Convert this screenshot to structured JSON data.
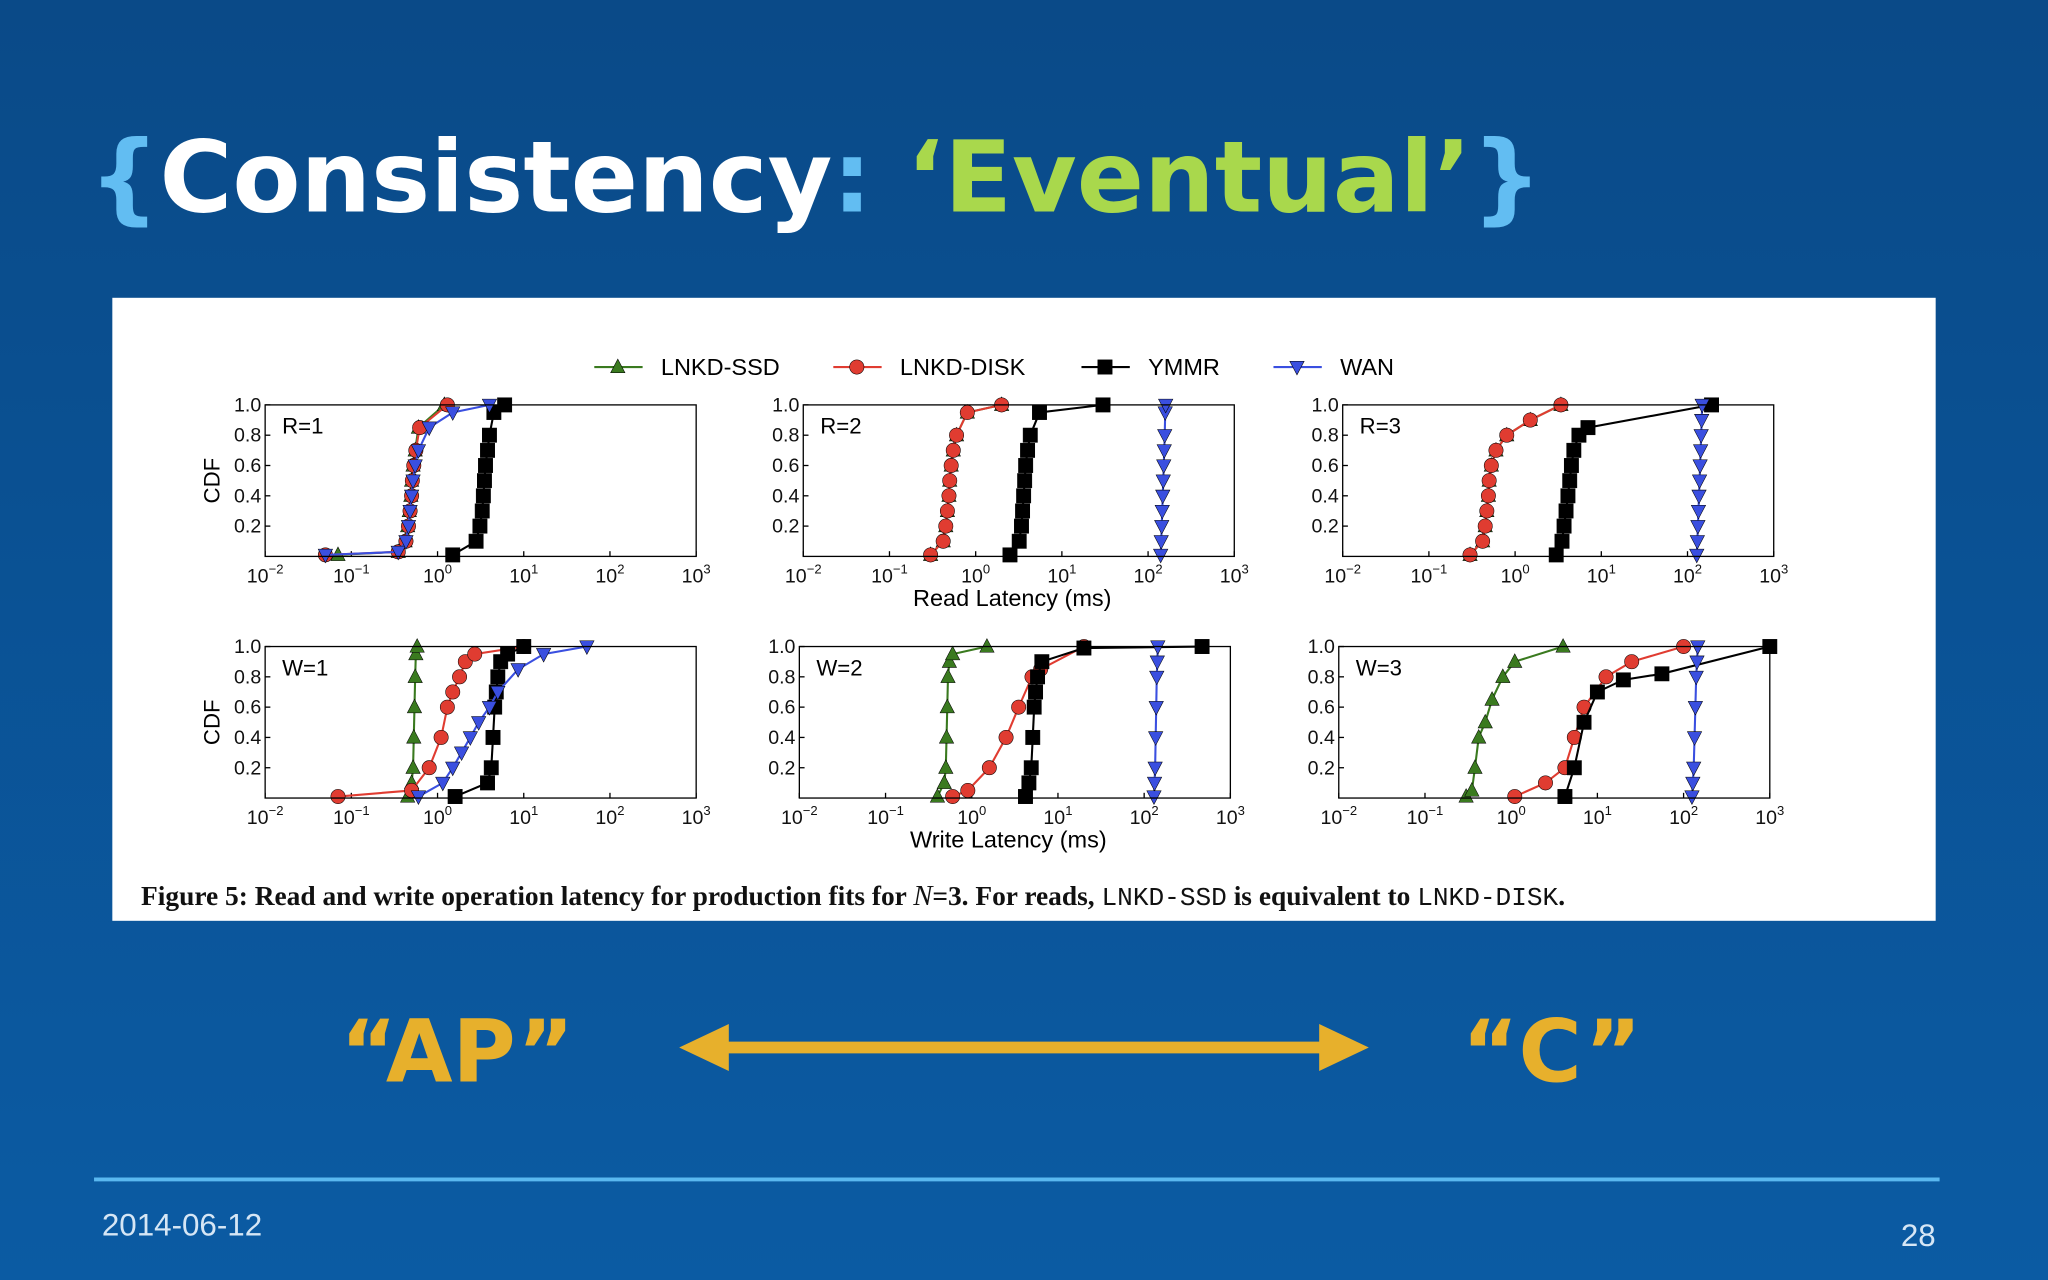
{
  "slide": {
    "title": [
      "{",
      "Consistency",
      ": ",
      "‘Eventual’",
      "}"
    ],
    "caption": [
      "Figure 5: Read and write operation latency for production fits for ",
      "N",
      "=3. For reads, ",
      "LNKD-SSD",
      " is equivalent to ",
      "LNKD-DISK",
      "."
    ],
    "left_label": "“AP”",
    "right_label": "“C”",
    "date": "2014-06-12",
    "page": "28"
  },
  "chart_data": {
    "type": "line",
    "xscale": "log",
    "legend": "top",
    "series": [
      {
        "name": "LNKD-SSD",
        "color": "#3a7a1f",
        "marker": "triangle-up"
      },
      {
        "name": "LNKD-DISK",
        "color": "#e03c31",
        "marker": "circle"
      },
      {
        "name": "YMMR",
        "color": "#000000",
        "marker": "square"
      },
      {
        "name": "WAN",
        "color": "#3a4fe0",
        "marker": "triangle-down"
      }
    ],
    "xlim": [
      0.01,
      1000
    ],
    "xticks": [
      {
        "value": 0.01,
        "label": "10",
        "exponent": "−2"
      },
      {
        "value": 0.1,
        "label": "10",
        "exponent": "−1"
      },
      {
        "value": 1,
        "label": "10",
        "exponent": "0"
      },
      {
        "value": 10,
        "label": "10",
        "exponent": "1"
      },
      {
        "value": 100,
        "label": "10",
        "exponent": "2"
      },
      {
        "value": 1000,
        "label": "10",
        "exponent": "3"
      }
    ],
    "ylim": [
      0,
      1
    ],
    "yticks": [
      0.2,
      0.4,
      0.6,
      0.8,
      {
        "value": 1,
        "label": "1.0"
      }
    ],
    "panels": [
      {
        "label": "R=1",
        "ylabel": "CDF",
        "lines": [
          {
            "x": [
              0.07,
              0.35,
              0.42,
              0.45,
              0.47,
              0.49,
              0.5,
              0.52,
              0.55,
              0.6,
              1.2
            ],
            "values": [
              0.01,
              0.03,
              0.1,
              0.2,
              0.3,
              0.4,
              0.5,
              0.6,
              0.7,
              0.85,
              1
            ]
          },
          {
            "x": [
              0.05,
              0.35,
              0.43,
              0.46,
              0.48,
              0.5,
              0.51,
              0.53,
              0.56,
              0.62,
              1.3
            ],
            "values": [
              0.01,
              0.03,
              0.1,
              0.2,
              0.3,
              0.4,
              0.5,
              0.6,
              0.7,
              0.85,
              1
            ]
          },
          {
            "x": [
              1.5,
              2.8,
              3.1,
              3.3,
              3.4,
              3.5,
              3.6,
              3.8,
              4,
              4.5,
              6
            ],
            "values": [
              0.01,
              0.1,
              0.2,
              0.3,
              0.4,
              0.5,
              0.6,
              0.7,
              0.8,
              0.95,
              1
            ]
          },
          {
            "x": [
              0.05,
              0.35,
              0.43,
              0.46,
              0.48,
              0.5,
              0.52,
              0.55,
              0.6,
              0.8,
              1.5,
              4
            ],
            "values": [
              0.01,
              0.03,
              0.1,
              0.2,
              0.3,
              0.4,
              0.5,
              0.6,
              0.7,
              0.85,
              0.95,
              1
            ]
          }
        ]
      },
      {
        "label": "R=2",
        "xlabel": "Read Latency (ms)",
        "lines": [
          {
            "x": [
              0.3,
              0.42,
              0.45,
              0.47,
              0.49,
              0.5,
              0.52,
              0.55,
              0.6,
              0.8,
              2
            ],
            "values": [
              0.01,
              0.1,
              0.2,
              0.3,
              0.4,
              0.5,
              0.6,
              0.7,
              0.8,
              0.95,
              1
            ]
          },
          {
            "x": [
              0.3,
              0.42,
              0.45,
              0.47,
              0.49,
              0.5,
              0.52,
              0.55,
              0.6,
              0.8,
              2
            ],
            "values": [
              0.01,
              0.1,
              0.2,
              0.3,
              0.4,
              0.5,
              0.6,
              0.7,
              0.8,
              0.95,
              1
            ]
          },
          {
            "x": [
              2.5,
              3.2,
              3.4,
              3.5,
              3.6,
              3.7,
              3.8,
              4,
              4.3,
              5.5,
              30
            ],
            "values": [
              0.01,
              0.1,
              0.2,
              0.3,
              0.4,
              0.5,
              0.6,
              0.7,
              0.8,
              0.95,
              1
            ]
          },
          {
            "x": [
              140,
              142,
              144,
              146,
              148,
              150,
              152,
              154,
              156,
              158,
              160
            ],
            "values": [
              0.01,
              0.1,
              0.2,
              0.3,
              0.4,
              0.5,
              0.6,
              0.7,
              0.8,
              0.95,
              1
            ]
          }
        ]
      },
      {
        "label": "R=3",
        "lines": [
          {
            "x": [
              0.3,
              0.42,
              0.45,
              0.47,
              0.49,
              0.5,
              0.53,
              0.6,
              0.8,
              1.5,
              3.4
            ],
            "values": [
              0.01,
              0.1,
              0.2,
              0.3,
              0.4,
              0.5,
              0.6,
              0.7,
              0.8,
              0.9,
              1
            ]
          },
          {
            "x": [
              0.3,
              0.42,
              0.45,
              0.47,
              0.49,
              0.5,
              0.53,
              0.6,
              0.8,
              1.5,
              3.4
            ],
            "values": [
              0.01,
              0.1,
              0.2,
              0.3,
              0.4,
              0.5,
              0.6,
              0.7,
              0.8,
              0.9,
              1
            ]
          },
          {
            "x": [
              3,
              3.5,
              3.7,
              3.9,
              4.1,
              4.3,
              4.5,
              4.8,
              5.5,
              7,
              190
            ],
            "values": [
              0.01,
              0.1,
              0.2,
              0.3,
              0.4,
              0.5,
              0.6,
              0.7,
              0.8,
              0.85,
              1
            ]
          },
          {
            "x": [
              128,
              130,
              132,
              134,
              136,
              138,
              140,
              142,
              144,
              146,
              148
            ],
            "values": [
              0.01,
              0.1,
              0.2,
              0.3,
              0.4,
              0.5,
              0.6,
              0.7,
              0.8,
              0.9,
              1
            ]
          }
        ]
      },
      {
        "label": "W=1",
        "ylabel": "CDF",
        "lines": [
          {
            "x": [
              0.45,
              0.5,
              0.52,
              0.53,
              0.54,
              0.55,
              0.56,
              0.58
            ],
            "values": [
              0.01,
              0.1,
              0.2,
              0.4,
              0.6,
              0.8,
              0.95,
              1
            ]
          },
          {
            "x": [
              0.07,
              0.5,
              0.8,
              1.1,
              1.3,
              1.5,
              1.8,
              2.1,
              2.7,
              10
            ],
            "values": [
              0.01,
              0.05,
              0.2,
              0.4,
              0.6,
              0.7,
              0.8,
              0.9,
              0.95,
              1
            ]
          },
          {
            "x": [
              1.6,
              3.8,
              4.2,
              4.4,
              4.6,
              4.8,
              5,
              5.4,
              6.5,
              10
            ],
            "values": [
              0.01,
              0.1,
              0.2,
              0.4,
              0.6,
              0.7,
              0.8,
              0.9,
              0.95,
              1
            ]
          },
          {
            "x": [
              0.6,
              1.15,
              1.5,
              1.9,
              2.4,
              3,
              4,
              5,
              8.6,
              17,
              54
            ],
            "values": [
              0.01,
              0.1,
              0.2,
              0.3,
              0.4,
              0.5,
              0.6,
              0.7,
              0.85,
              0.95,
              1
            ]
          }
        ]
      },
      {
        "label": "W=2",
        "xlabel": "Write Latency (ms)",
        "lines": [
          {
            "x": [
              0.4,
              0.48,
              0.5,
              0.51,
              0.52,
              0.53,
              0.55,
              0.6,
              1.5
            ],
            "values": [
              0.01,
              0.1,
              0.2,
              0.4,
              0.6,
              0.8,
              0.9,
              0.95,
              1
            ]
          },
          {
            "x": [
              0.6,
              0.9,
              1.6,
              2.5,
              3.5,
              5,
              6.3,
              20
            ],
            "values": [
              0.01,
              0.05,
              0.2,
              0.4,
              0.6,
              0.8,
              0.85,
              1
            ]
          },
          {
            "x": [
              4.2,
              4.6,
              4.9,
              5.1,
              5.3,
              5.5,
              5.8,
              6.5,
              20,
              470
            ],
            "values": [
              0.01,
              0.1,
              0.2,
              0.4,
              0.6,
              0.7,
              0.8,
              0.9,
              0.99,
              1
            ]
          },
          {
            "x": [
              130,
              132,
              134,
              136,
              138,
              140,
              142,
              144
            ],
            "values": [
              0.01,
              0.1,
              0.2,
              0.4,
              0.6,
              0.8,
              0.9,
              1
            ]
          }
        ]
      },
      {
        "label": "W=3",
        "lines": [
          {
            "x": [
              0.3,
              0.35,
              0.38,
              0.42,
              0.5,
              0.6,
              0.8,
              1.1,
              4
            ],
            "values": [
              0.01,
              0.05,
              0.2,
              0.4,
              0.5,
              0.65,
              0.8,
              0.9,
              1
            ]
          },
          {
            "x": [
              1.1,
              2.5,
              4.2,
              5.4,
              7,
              12.6,
              25,
              100
            ],
            "values": [
              0.01,
              0.1,
              0.2,
              0.4,
              0.6,
              0.8,
              0.9,
              1
            ]
          },
          {
            "x": [
              4.2,
              5.4,
              7,
              10,
              20,
              56,
              1000
            ],
            "values": [
              0.01,
              0.2,
              0.5,
              0.7,
              0.78,
              0.82,
              1
            ]
          },
          {
            "x": [
              125,
              128,
              131,
              134,
              137,
              140,
              143,
              146
            ],
            "values": [
              0.01,
              0.1,
              0.2,
              0.4,
              0.6,
              0.8,
              0.9,
              1
            ]
          }
        ]
      }
    ]
  }
}
